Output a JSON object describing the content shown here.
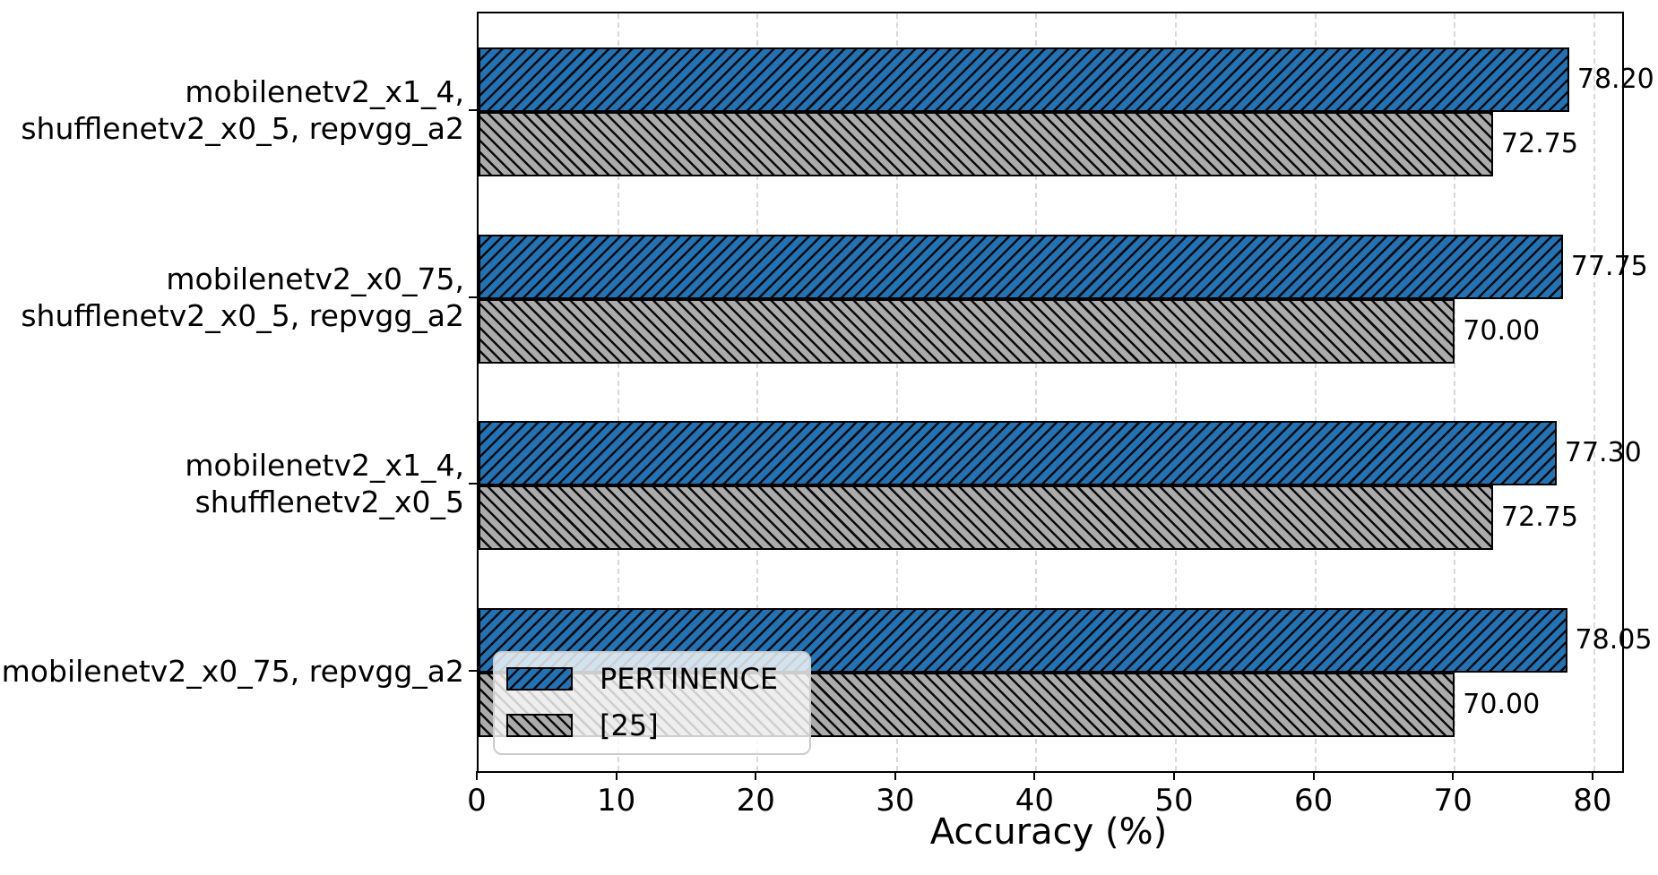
{
  "chart_data": {
    "type": "bar",
    "orientation": "horizontal",
    "title": "",
    "xlabel": "Accuracy (%)",
    "ylabel": "",
    "xlim": [
      0,
      82
    ],
    "xticks": [
      0,
      10,
      20,
      30,
      40,
      50,
      60,
      70,
      80
    ],
    "grid": "vertical-dashed",
    "categories": [
      "mobilenetv2_x1_4,\nshufflenetv2_x0_5, repvgg_a2",
      "mobilenetv2_x0_75,\nshufflenetv2_x0_5, repvgg_a2",
      "mobilenetv2_x1_4,\nshufflenetv2_x0_5",
      "mobilenetv2_x0_75, repvgg_a2"
    ],
    "series": [
      {
        "name": "PERTINENCE",
        "color": "#2273b5",
        "hatch": "/",
        "values": [
          78.2,
          77.75,
          77.3,
          78.05
        ],
        "labels": [
          "78.20",
          "77.75",
          "77.30",
          "78.05"
        ]
      },
      {
        "name": "[25]",
        "color": "#ababab",
        "hatch": "\\",
        "values": [
          72.75,
          70.0,
          72.75,
          70.0
        ],
        "labels": [
          "72.75",
          "70.00",
          "72.75",
          "70.00"
        ]
      }
    ],
    "legend": {
      "position": "lower left",
      "entries": [
        "PERTINENCE",
        "[25]"
      ]
    }
  }
}
